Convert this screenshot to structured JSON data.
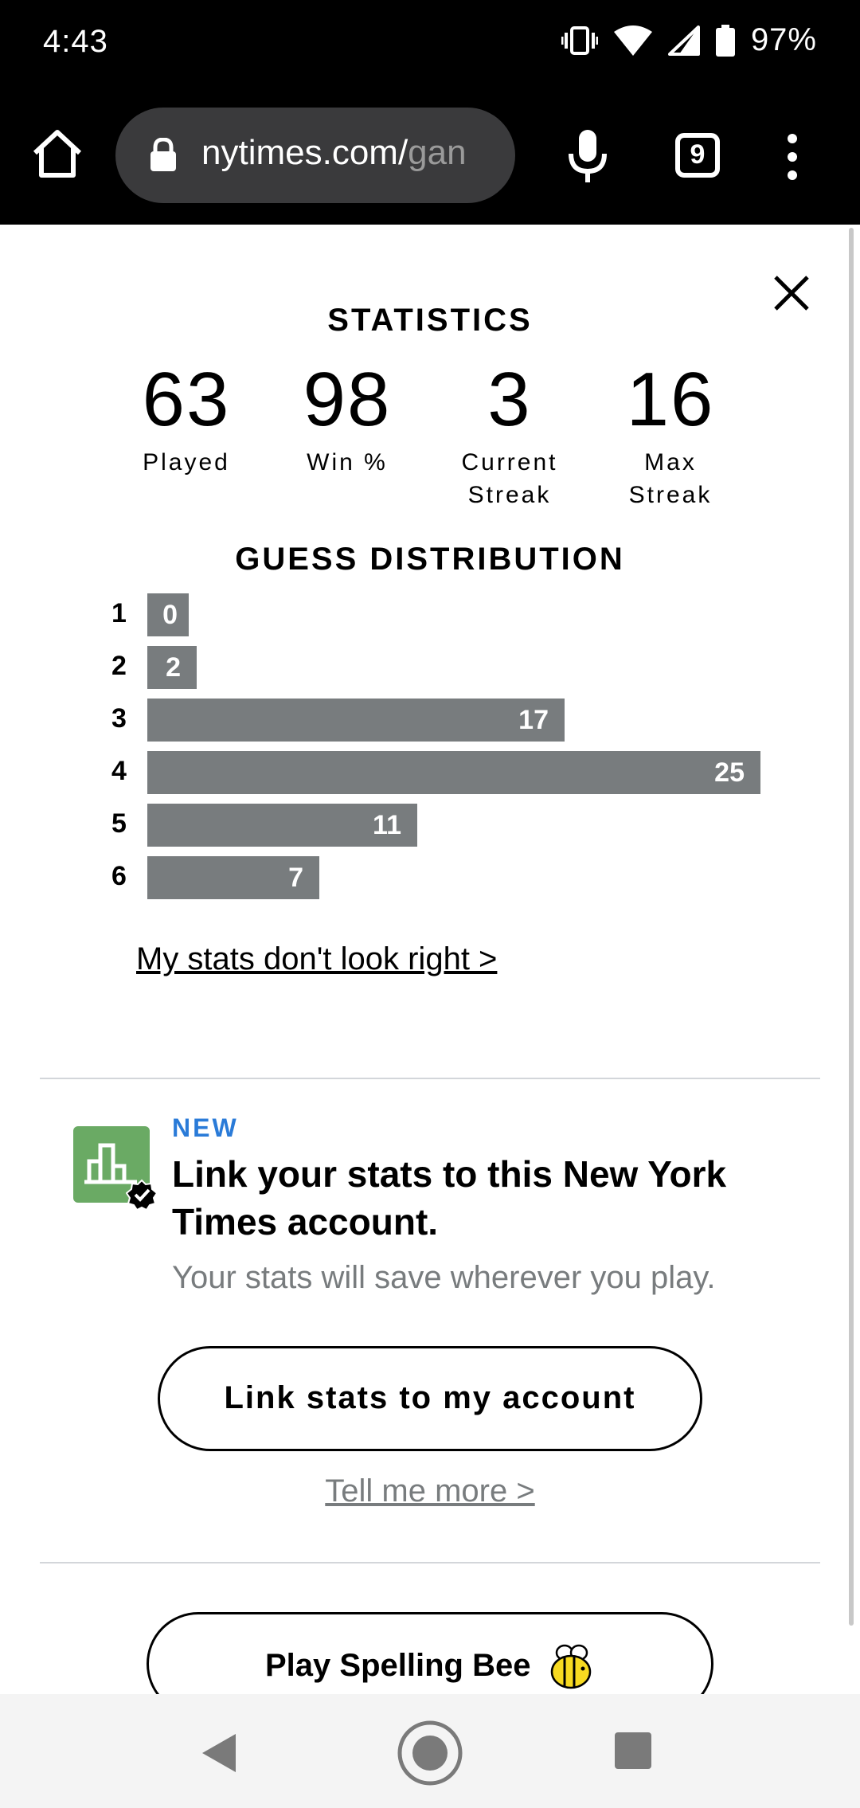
{
  "status_bar": {
    "time": "4:43",
    "battery": "97%"
  },
  "browser": {
    "url_main": "nytimes.com/",
    "url_faded": "gan",
    "tab_count": "9"
  },
  "stats": {
    "title": "STATISTICS",
    "items": [
      {
        "value": "63",
        "label": "Played"
      },
      {
        "value": "98",
        "label": "Win %"
      },
      {
        "value": "3",
        "label_line1": "Current",
        "label_line2": "Streak"
      },
      {
        "value": "16",
        "label_line1": "Max",
        "label_line2": "Streak"
      }
    ]
  },
  "distribution": {
    "title": "GUESS DISTRIBUTION",
    "rows": [
      {
        "guess": "1",
        "count": "0"
      },
      {
        "guess": "2",
        "count": "2"
      },
      {
        "guess": "3",
        "count": "17"
      },
      {
        "guess": "4",
        "count": "25"
      },
      {
        "guess": "5",
        "count": "11"
      },
      {
        "guess": "6",
        "count": "7"
      }
    ],
    "bar_color": "#787c7e"
  },
  "stats_link": "My stats don't look right >",
  "promo": {
    "badge": "NEW",
    "heading": "Link your stats to this New York Times account.",
    "subtext": "Your stats will save wherever you play.",
    "button": "Link stats to my account",
    "more_link": "Tell me more >",
    "accent_color": "#2a7bd8",
    "icon_color": "#6aaa64"
  },
  "spelling_bee_button": "Play Spelling Bee"
}
